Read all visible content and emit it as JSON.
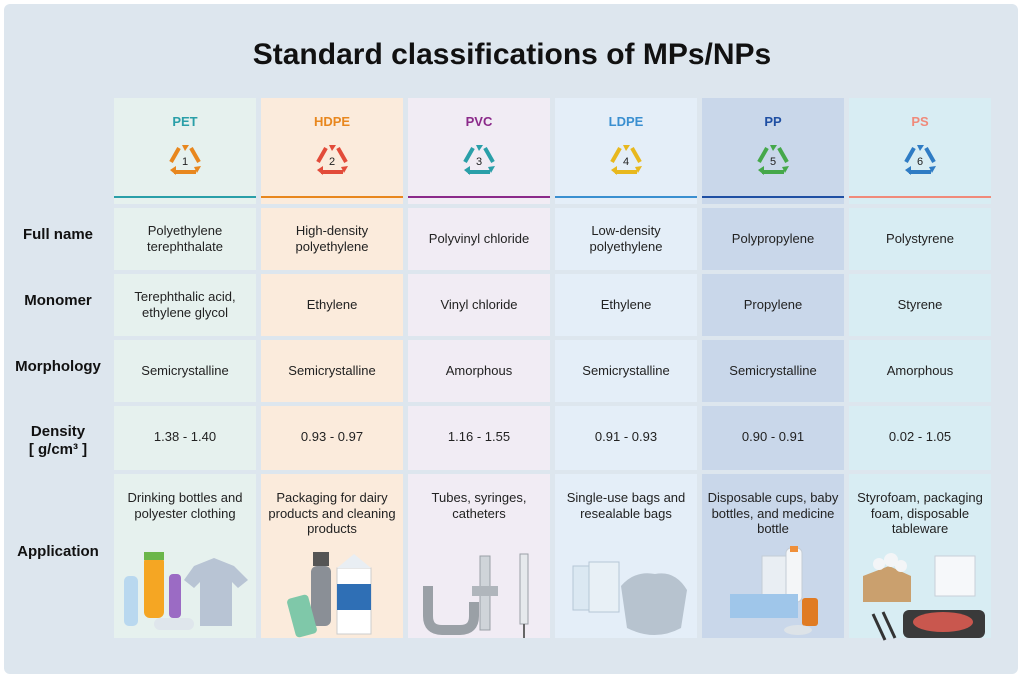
{
  "title": "Standard classifications of MPs/NPs",
  "row_labels": {
    "full_name": "Full name",
    "monomer": "Monomer",
    "morphology": "Morphology",
    "density": "Density",
    "density_unit": "[ g/cm³ ]",
    "application": "Application"
  },
  "columns": [
    {
      "abbr": "PET",
      "code": "1",
      "color": "#2a9fa8",
      "full_name": "Polyethylene terephthalate",
      "monomer": "Terephthalic acid, ethylene glycol",
      "morphology": "Semicrystalline",
      "density": "1.38 - 1.40",
      "application": "Drinking bottles and polyester clothing"
    },
    {
      "abbr": "HDPE",
      "code": "2",
      "color": "#e8871e",
      "full_name": "High-density polyethylene",
      "monomer": "Ethylene",
      "morphology": "Semicrystalline",
      "density": "0.93 - 0.97",
      "application": "Packaging for dairy products and cleaning products"
    },
    {
      "abbr": "PVC",
      "code": "3",
      "color": "#8b2a8a",
      "full_name": "Polyvinyl chloride",
      "monomer": "Vinyl chloride",
      "morphology": "Amorphous",
      "density": "1.16 - 1.55",
      "application": "Tubes, syringes, catheters"
    },
    {
      "abbr": "LDPE",
      "code": "4",
      "color": "#3a8fd0",
      "full_name": "Low-density polyethylene",
      "monomer": "Ethylene",
      "morphology": "Semicrystalline",
      "density": "0.91 - 0.93",
      "application": "Single-use bags and resealable bags"
    },
    {
      "abbr": "PP",
      "code": "5",
      "color": "#1f4fa3",
      "full_name": "Polypropylene",
      "monomer": "Propylene",
      "morphology": "Semicrystalline",
      "density": "0.90 - 0.91",
      "application": "Disposable cups, baby bottles, and medicine bottle"
    },
    {
      "abbr": "PS",
      "code": "6",
      "color": "#f08a7a",
      "full_name": "Polystyrene",
      "monomer": "Styrene",
      "morphology": "Amorphous",
      "density": "0.02 - 1.05",
      "application": "Styrofoam, packaging foam, disposable tableware"
    }
  ],
  "icon_colors": [
    "#e8871e",
    "#e24b3a",
    "#2a9fa8",
    "#e8b81e",
    "#45a84a",
    "#2f7cc4"
  ],
  "column_bg": [
    "#e6f1ee",
    "#fbebdc",
    "#f1ecf4",
    "#e4eef8",
    "#c9d7ea",
    "#d8edf3"
  ]
}
